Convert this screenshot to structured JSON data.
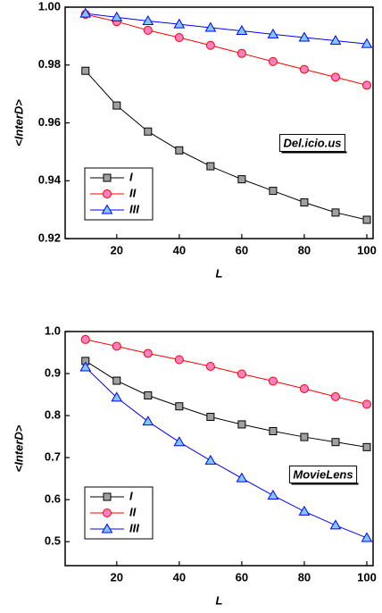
{
  "chart_data": [
    {
      "type": "line",
      "ylabel": "<InterD>",
      "xlabel": "L",
      "annotation": "Del.icio.us",
      "x": [
        10,
        20,
        30,
        40,
        50,
        60,
        70,
        80,
        90,
        100
      ],
      "xlim": [
        3.5,
        102
      ],
      "xticks": [
        20,
        40,
        60,
        80,
        100
      ],
      "ylim": [
        0.92,
        1.0
      ],
      "yticks": [
        0.92,
        0.94,
        0.96,
        0.98,
        {
          "value": 1.0,
          "label": "1.00"
        }
      ],
      "legend": "lower left",
      "series": [
        {
          "name": "I",
          "color": "#000000",
          "fill": "#a0a0a0",
          "marker": "square",
          "values": [
            0.978,
            0.966,
            0.957,
            0.9505,
            0.945,
            0.9405,
            0.9365,
            0.9325,
            0.929,
            0.9265
          ]
        },
        {
          "name": "II",
          "color": "#ff0000",
          "fill": "#ff80c0",
          "marker": "circle",
          "values": [
            0.9975,
            0.995,
            0.992,
            0.9895,
            0.9868,
            0.984,
            0.9812,
            0.9785,
            0.9758,
            0.973
          ]
        },
        {
          "name": "III",
          "color": "#0000ff",
          "fill": "#80c8ff",
          "marker": "triangle",
          "values": [
            0.9978,
            0.9965,
            0.9952,
            0.9941,
            0.9929,
            0.9918,
            0.9906,
            0.9895,
            0.9884,
            0.9873
          ]
        }
      ]
    },
    {
      "type": "line",
      "ylabel": "<InterD>",
      "xlabel": "L",
      "annotation": "MovieLens",
      "x": [
        10,
        20,
        30,
        40,
        50,
        60,
        70,
        80,
        90,
        100
      ],
      "xlim": [
        3.5,
        102
      ],
      "xticks": [
        20,
        40,
        60,
        80,
        100
      ],
      "ylim": [
        0.443,
        1.0
      ],
      "yticks": [
        0.5,
        0.6,
        0.7,
        0.8,
        0.9,
        {
          "value": 1.0,
          "label": "1.0"
        }
      ],
      "legend": "lower left",
      "series": [
        {
          "name": "I",
          "color": "#000000",
          "fill": "#a0a0a0",
          "marker": "square",
          "values": [
            0.93,
            0.883,
            0.848,
            0.822,
            0.797,
            0.779,
            0.763,
            0.749,
            0.737,
            0.725
          ]
        },
        {
          "name": "II",
          "color": "#ff0000",
          "fill": "#ff80c0",
          "marker": "circle",
          "values": [
            0.981,
            0.965,
            0.948,
            0.933,
            0.917,
            0.899,
            0.882,
            0.864,
            0.845,
            0.827
          ]
        },
        {
          "name": "III",
          "color": "#0000ff",
          "fill": "#80c8ff",
          "marker": "triangle",
          "values": [
            0.915,
            0.843,
            0.786,
            0.737,
            0.693,
            0.651,
            0.61,
            0.572,
            0.539,
            0.509
          ]
        }
      ]
    }
  ]
}
